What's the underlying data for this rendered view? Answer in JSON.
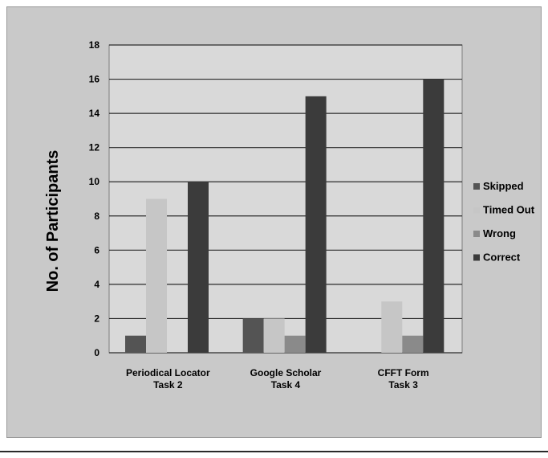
{
  "chart_data": {
    "type": "bar",
    "title": "",
    "xlabel": "",
    "ylabel": "No. of Participants",
    "ylim": [
      0,
      18
    ],
    "yticks": [
      0,
      2,
      4,
      6,
      8,
      10,
      12,
      14,
      16,
      18
    ],
    "grid": true,
    "legend_position": "right",
    "categories": [
      [
        "Periodical Locator",
        "Task 2"
      ],
      [
        "Google Scholar",
        "Task 4"
      ],
      [
        "CFFT Form",
        "Task 3"
      ]
    ],
    "series": [
      {
        "name": "Skipped",
        "color": "#545454",
        "values": [
          1,
          2,
          0
        ]
      },
      {
        "name": "Timed Out",
        "color": "#c6c6c6",
        "values": [
          9,
          2,
          3
        ]
      },
      {
        "name": "Wrong",
        "color": "#8a8a8a",
        "values": [
          0,
          1,
          1
        ]
      },
      {
        "name": "Correct",
        "color": "#3b3b3b",
        "values": [
          10,
          15,
          16
        ]
      }
    ]
  }
}
